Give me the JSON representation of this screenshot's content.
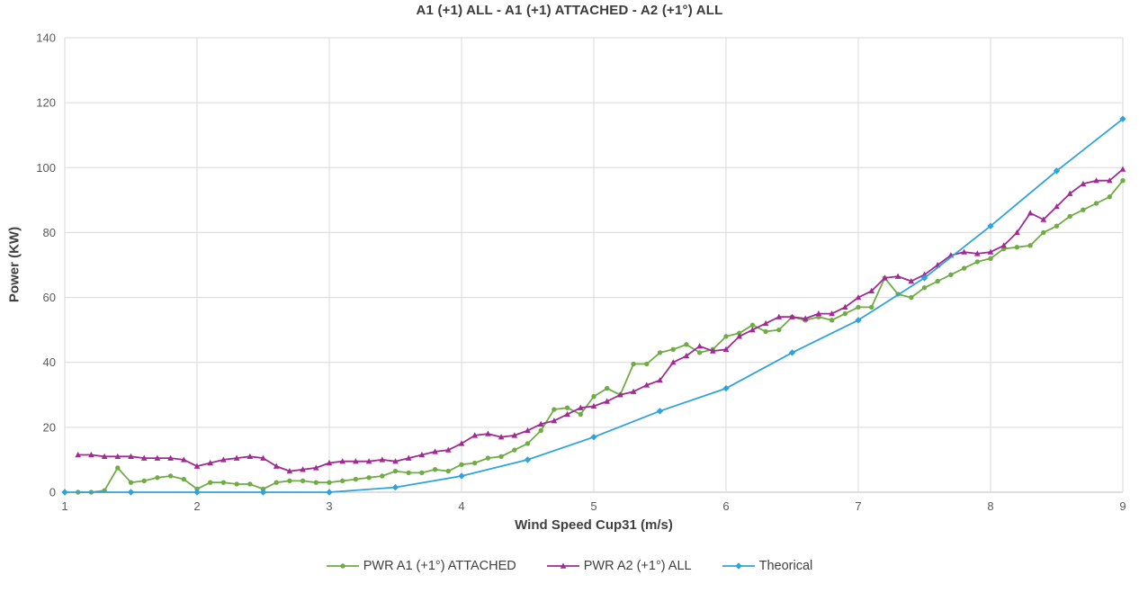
{
  "chart_data": {
    "type": "line",
    "title": "A1 (+1) ALL - A1 (+1) ATTACHED - A2 (+1°) ALL",
    "xlabel": "Wind Speed Cup31 (m/s)",
    "ylabel": "Power (KW)",
    "xlim": [
      1,
      9
    ],
    "ylim": [
      0,
      140
    ],
    "x_ticks": [
      1,
      2,
      3,
      4,
      5,
      6,
      7,
      8,
      9
    ],
    "y_ticks": [
      0,
      20,
      40,
      60,
      80,
      100,
      120,
      140
    ],
    "grid": true,
    "legend_position": "bottom",
    "colors": {
      "grid": "#D9D9D9",
      "axis": "#BFBFBF",
      "tick_text": "#595959",
      "label_text": "#404040"
    },
    "series": [
      {
        "name": "PWR A1 (+1°) ATTACHED",
        "color": "#6FAC46",
        "marker": "circle",
        "x": [
          1.1,
          1.2,
          1.3,
          1.4,
          1.5,
          1.6,
          1.7,
          1.8,
          1.9,
          2.0,
          2.1,
          2.2,
          2.3,
          2.4,
          2.5,
          2.6,
          2.7,
          2.8,
          2.9,
          3.0,
          3.1,
          3.2,
          3.3,
          3.4,
          3.5,
          3.6,
          3.7,
          3.8,
          3.9,
          4.0,
          4.1,
          4.2,
          4.3,
          4.4,
          4.5,
          4.6,
          4.7,
          4.8,
          4.9,
          5.0,
          5.1,
          5.2,
          5.3,
          5.4,
          5.5,
          5.6,
          5.7,
          5.8,
          5.9,
          6.0,
          6.1,
          6.2,
          6.3,
          6.4,
          6.5,
          6.6,
          6.7,
          6.8,
          6.9,
          7.0,
          7.1,
          7.2,
          7.3,
          7.4,
          7.5,
          7.6,
          7.7,
          7.8,
          7.9,
          8.0,
          8.1,
          8.2,
          8.3,
          8.4,
          8.5,
          8.6,
          8.7,
          8.8,
          8.9,
          9.0
        ],
        "y": [
          0,
          0,
          0.5,
          7.5,
          3,
          3.5,
          4.5,
          5,
          4,
          1,
          3,
          3,
          2.5,
          2.5,
          1,
          3,
          3.5,
          3.5,
          3,
          3,
          3.5,
          4,
          4.5,
          5,
          6.5,
          6,
          6,
          7,
          6.5,
          8.5,
          9,
          10.5,
          11,
          13,
          15,
          19,
          25.5,
          26,
          24,
          29.5,
          32,
          30,
          39.5,
          39.5,
          43,
          44,
          45.5,
          43,
          44,
          48,
          49,
          51.5,
          49.5,
          50,
          54,
          53,
          54,
          53,
          55,
          57,
          57,
          66,
          61,
          60,
          63,
          65,
          67,
          69,
          71,
          72,
          75,
          75.5,
          76,
          80,
          82,
          85,
          87,
          89,
          91,
          96
        ]
      },
      {
        "name": "PWR A2 (+1°) ALL",
        "color": "#A02B93",
        "marker": "triangle",
        "x": [
          1.1,
          1.2,
          1.3,
          1.4,
          1.5,
          1.6,
          1.7,
          1.8,
          1.9,
          2.0,
          2.1,
          2.2,
          2.3,
          2.4,
          2.5,
          2.6,
          2.7,
          2.8,
          2.9,
          3.0,
          3.1,
          3.2,
          3.3,
          3.4,
          3.5,
          3.6,
          3.7,
          3.8,
          3.9,
          4.0,
          4.1,
          4.2,
          4.3,
          4.4,
          4.5,
          4.6,
          4.7,
          4.8,
          4.9,
          5.0,
          5.1,
          5.2,
          5.3,
          5.4,
          5.5,
          5.6,
          5.7,
          5.8,
          5.9,
          6.0,
          6.1,
          6.2,
          6.3,
          6.4,
          6.5,
          6.6,
          6.7,
          6.8,
          6.9,
          7.0,
          7.1,
          7.2,
          7.3,
          7.4,
          7.5,
          7.6,
          7.7,
          7.8,
          7.9,
          8.0,
          8.1,
          8.2,
          8.3,
          8.4,
          8.5,
          8.6,
          8.7,
          8.8,
          8.9,
          9.0
        ],
        "y": [
          11.5,
          11.5,
          11,
          11,
          11,
          10.5,
          10.5,
          10.5,
          10,
          8,
          9,
          10,
          10.5,
          11,
          10.5,
          8,
          6.5,
          7,
          7.5,
          9,
          9.5,
          9.5,
          9.5,
          10,
          9.5,
          10.5,
          11.5,
          12.5,
          13,
          15,
          17.5,
          18,
          17,
          17.5,
          19,
          21,
          22,
          24,
          26,
          26.5,
          28,
          30,
          31,
          33,
          34.5,
          40,
          42,
          45,
          43.5,
          44,
          48,
          50,
          52,
          54,
          54,
          53.5,
          55,
          55,
          57,
          60,
          62,
          66,
          66.5,
          65,
          67,
          70,
          73,
          74,
          73.5,
          74,
          76,
          80,
          86,
          84,
          88,
          92,
          95,
          96,
          96,
          99.5
        ]
      },
      {
        "name": "Theorical",
        "color": "#2FA3DC",
        "marker": "diamond",
        "x": [
          1,
          1.5,
          2,
          2.5,
          3,
          3.5,
          4,
          4.5,
          5,
          5.5,
          6,
          6.5,
          7,
          7.5,
          8,
          8.5,
          9
        ],
        "y": [
          0,
          0,
          0,
          0,
          0,
          1.5,
          5,
          10,
          17,
          25,
          32,
          43,
          53,
          66,
          82,
          99,
          115
        ]
      }
    ]
  }
}
